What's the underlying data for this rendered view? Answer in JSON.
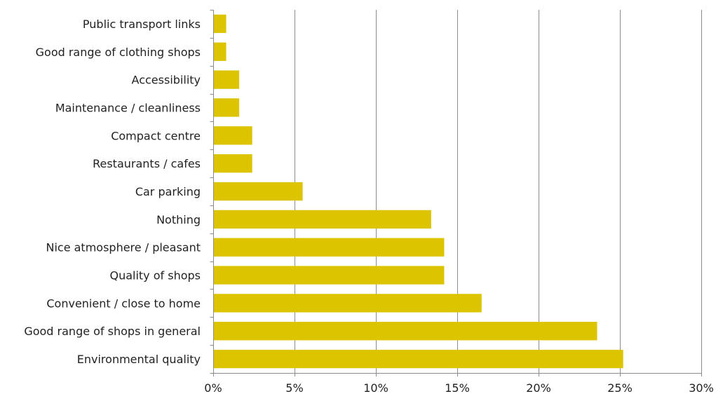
{
  "chart_data": {
    "type": "bar",
    "orientation": "horizontal",
    "categories": [
      "Public transport links",
      "Good range of clothing shops",
      "Accessibility",
      "Maintenance / cleanliness",
      "Compact centre",
      "Restaurants / cafes",
      "Car parking",
      "Nothing",
      "Nice atmosphere / pleasant",
      "Quality of shops",
      "Convenient / close to home",
      "Good range of shops in general",
      "Environmental quality"
    ],
    "values": [
      0.8,
      0.8,
      1.6,
      1.6,
      2.4,
      2.4,
      5.5,
      13.4,
      14.2,
      14.2,
      16.5,
      23.6,
      25.2
    ],
    "xlim": [
      0,
      30
    ],
    "x_ticks": [
      0,
      5,
      10,
      15,
      20,
      25,
      30
    ],
    "x_tick_labels": [
      "0%",
      "5%",
      "10%",
      "15%",
      "20%",
      "25%",
      "30%"
    ],
    "title": "",
    "xlabel": "",
    "ylabel": "",
    "grid": "vertical",
    "legend": "none",
    "colors": {
      "bar": "#dcc400",
      "grid": "#8c8c8c",
      "axis": "#8c8c8c",
      "text": "#222222"
    }
  }
}
